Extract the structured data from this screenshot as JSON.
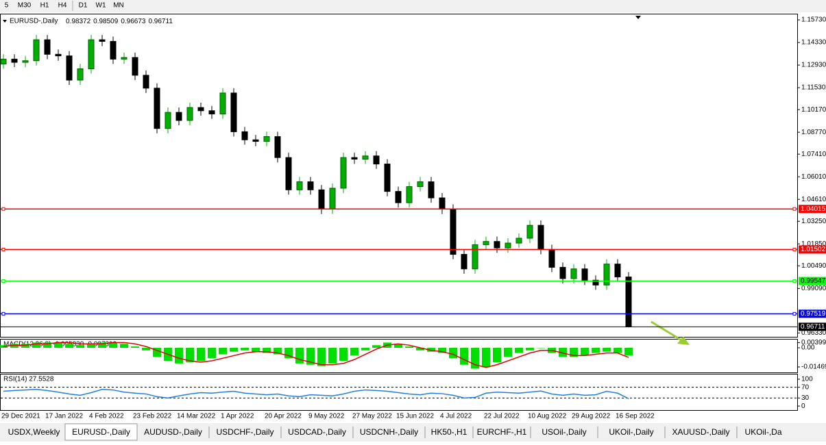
{
  "timeframes": [
    "5",
    "M30",
    "H1",
    "H4",
    "D1",
    "W1",
    "MN"
  ],
  "tabs": [
    "USDX,Weekly",
    "EURUSD-,Daily",
    "AUDUSD-,Daily",
    "USDCHF-,Daily",
    "USDCAD-,Daily",
    "USDCNH-,Daily",
    "HK50-,H1",
    "EURCHF-,H1",
    "USOil-,Daily",
    "UKOil-,Daily",
    "XAUUSD-,Daily",
    "UKOil-,Da"
  ],
  "chart_data": [
    {
      "type": "candlestick",
      "title": "EURUSD-,Daily",
      "ohlc_header": [
        0.98372,
        0.98509,
        0.96673,
        0.96711
      ],
      "categories": [
        "29 Dec 2021",
        null,
        null,
        null,
        "17 Jan 2022",
        null,
        null,
        null,
        "4 Feb 2022",
        null,
        null,
        null,
        "23 Feb 2022",
        null,
        null,
        null,
        "14 Mar 2022",
        null,
        null,
        null,
        "1 Apr 2022",
        null,
        null,
        null,
        "20 Apr 2022",
        null,
        null,
        null,
        "9 May 2022",
        null,
        null,
        null,
        "27 May 2022",
        null,
        null,
        null,
        "15 Jun 2022",
        null,
        null,
        null,
        "4 Jul 2022",
        null,
        null,
        null,
        "22 Jul 2022",
        null,
        null,
        null,
        "10 Aug 2022",
        null,
        null,
        null,
        "29 Aug 2022",
        null,
        null,
        null,
        "16 Sep 2022",
        null
      ],
      "open": [
        1.13,
        1.133,
        1.131,
        1.132,
        1.145,
        1.136,
        1.135,
        1.12,
        1.127,
        1.145,
        1.144,
        1.133,
        1.134,
        1.123,
        1.115,
        1.09,
        1.1,
        1.095,
        1.103,
        1.101,
        1.099,
        1.112,
        1.088,
        1.083,
        1.082,
        1.085,
        1.072,
        1.052,
        1.057,
        1.052,
        1.04,
        1.053,
        1.072,
        1.071,
        1.073,
        1.068,
        1.051,
        1.044,
        1.054,
        1.057,
        1.047,
        1.04,
        1.012,
        1.003,
        1.018,
        1.02,
        1.016,
        1.019,
        1.022,
        1.03,
        1.015,
        1.004,
        0.997,
        1.003,
        0.996,
        0.993,
        1.006,
        0.998
      ],
      "high": [
        1.136,
        1.136,
        1.135,
        1.148,
        1.148,
        1.139,
        1.138,
        1.13,
        1.148,
        1.148,
        1.147,
        1.137,
        1.137,
        1.126,
        1.118,
        1.103,
        1.103,
        1.106,
        1.106,
        1.104,
        1.115,
        1.115,
        1.091,
        1.086,
        1.088,
        1.088,
        1.075,
        1.06,
        1.06,
        1.055,
        1.056,
        1.075,
        1.075,
        1.076,
        1.076,
        1.071,
        1.054,
        1.057,
        1.06,
        1.06,
        1.05,
        1.043,
        1.015,
        1.021,
        1.023,
        1.023,
        1.022,
        1.025,
        1.033,
        1.033,
        1.018,
        1.007,
        1.006,
        1.006,
        0.999,
        1.009,
        1.009,
        1.001
      ],
      "low": [
        1.127,
        1.128,
        1.128,
        1.129,
        1.133,
        1.132,
        1.117,
        1.117,
        1.124,
        1.141,
        1.13,
        1.13,
        1.12,
        1.112,
        1.087,
        1.087,
        1.092,
        1.092,
        1.098,
        1.096,
        1.096,
        1.085,
        1.08,
        1.079,
        1.079,
        1.069,
        1.049,
        1.049,
        1.049,
        1.037,
        1.037,
        1.05,
        1.068,
        1.068,
        1.065,
        1.048,
        1.041,
        1.041,
        1.051,
        1.044,
        1.037,
        1.009,
        1.0,
        1.0,
        1.015,
        1.013,
        1.013,
        1.016,
        1.019,
        1.012,
        1.001,
        0.994,
        0.994,
        0.993,
        0.99,
        0.99,
        0.995,
        0.96673
      ],
      "close": [
        1.133,
        1.131,
        1.132,
        1.145,
        1.136,
        1.135,
        1.12,
        1.127,
        1.145,
        1.144,
        1.133,
        1.134,
        1.123,
        1.115,
        1.09,
        1.1,
        1.095,
        1.103,
        1.101,
        1.099,
        1.112,
        1.088,
        1.083,
        1.082,
        1.085,
        1.072,
        1.052,
        1.057,
        1.052,
        1.04,
        1.053,
        1.072,
        1.071,
        1.073,
        1.068,
        1.051,
        1.044,
        1.054,
        1.057,
        1.047,
        1.04,
        1.012,
        1.003,
        1.018,
        1.02,
        1.016,
        1.019,
        1.022,
        1.03,
        1.015,
        1.004,
        0.997,
        1.003,
        0.996,
        0.993,
        1.006,
        0.998,
        0.96711
      ],
      "up_color": "#00b000",
      "down_color": "#000000",
      "levels": [
        {
          "value": 1.04015,
          "color": "#ff0000"
        },
        {
          "value": 1.01502,
          "color": "#ff0000"
        },
        {
          "value": 0.99547,
          "color": "#00ff00"
        },
        {
          "value": 0.97519,
          "color": "#0000ff"
        },
        {
          "value": 0.96711,
          "color": "#000000"
        }
      ],
      "ylim": [
        0.9609,
        1.1603
      ],
      "yticks": [
        {
          "value": 1.1573,
          "label": "1.15730"
        },
        {
          "value": 1.1433,
          "label": "1.14330"
        },
        {
          "value": 1.1293,
          "label": "1.12930"
        },
        {
          "value": 1.1153,
          "label": "1.11530"
        },
        {
          "value": 1.1017,
          "label": "1.10170"
        },
        {
          "value": 1.0877,
          "label": "1.08770"
        },
        {
          "value": 1.0741,
          "label": "1.07410"
        },
        {
          "value": 1.0601,
          "label": "1.06010"
        },
        {
          "value": 1.0461,
          "label": "1.04610"
        },
        {
          "value": 1.0325,
          "label": "1.03250"
        },
        {
          "value": 1.0185,
          "label": "1.01850"
        },
        {
          "value": 1.0049,
          "label": "1.00490"
        },
        {
          "value": 0.9909,
          "label": "0.99090"
        },
        {
          "value": 0.9633,
          "label": "0.96330"
        }
      ]
    },
    {
      "type": "combo",
      "title": "MACD(12,26,9) -0.005830 -0.007392",
      "series": [
        {
          "kind": "bar",
          "color": "#00e000",
          "values": [
            0.002,
            0.003,
            0.003,
            0.004,
            0.004,
            0.004,
            0.003,
            0.002,
            0.003,
            0.004,
            0.004,
            0.003,
            0.001,
            -0.002,
            -0.007,
            -0.01,
            -0.012,
            -0.011,
            -0.01,
            -0.008,
            -0.005,
            -0.003,
            -0.002,
            -0.003,
            -0.004,
            -0.005,
            -0.008,
            -0.012,
            -0.013,
            -0.014,
            -0.012,
            -0.01,
            -0.006,
            -0.002,
            0.002,
            0.004,
            0.003,
            0.001,
            -0.002,
            -0.003,
            -0.004,
            -0.008,
            -0.013,
            -0.016,
            -0.015,
            -0.011,
            -0.007,
            -0.004,
            -0.002,
            0.0,
            -0.004,
            -0.007,
            -0.007,
            -0.006,
            -0.004,
            -0.003,
            -0.004,
            -0.00583
          ]
        },
        {
          "kind": "line",
          "color": "#e00000",
          "values": [
            0.001,
            0.002,
            0.002,
            0.003,
            0.003,
            0.004,
            0.004,
            0.003,
            0.003,
            0.003,
            0.004,
            0.004,
            0.003,
            0.001,
            -0.002,
            -0.005,
            -0.008,
            -0.01,
            -0.011,
            -0.01,
            -0.008,
            -0.006,
            -0.004,
            -0.003,
            -0.003,
            -0.004,
            -0.006,
            -0.009,
            -0.011,
            -0.013,
            -0.013,
            -0.012,
            -0.009,
            -0.005,
            -0.001,
            0.002,
            0.003,
            0.002,
            0.0,
            -0.002,
            -0.003,
            -0.005,
            -0.009,
            -0.013,
            -0.015,
            -0.013,
            -0.01,
            -0.007,
            -0.004,
            -0.002,
            -0.002,
            -0.004,
            -0.006,
            -0.006,
            -0.005,
            -0.004,
            -0.004,
            -0.007392
          ]
        }
      ],
      "ylim": [
        -0.0189,
        0.0063
      ],
      "yticks": [
        0.00399,
        {
          "value": 0,
          "label": "0.00"
        },
        -0.01469
      ]
    },
    {
      "type": "line",
      "title": "RSI(14) 27.5528",
      "color": "#1e7fe0",
      "values": [
        55,
        58,
        60,
        62,
        58,
        52,
        45,
        40,
        50,
        62,
        60,
        52,
        48,
        45,
        35,
        30,
        38,
        45,
        50,
        48,
        52,
        55,
        48,
        45,
        42,
        45,
        38,
        35,
        42,
        40,
        38,
        45,
        55,
        60,
        58,
        55,
        50,
        45,
        42,
        48,
        46,
        40,
        30,
        32,
        48,
        52,
        50,
        48,
        52,
        56,
        45,
        40,
        45,
        40,
        42,
        55,
        48,
        27.5528
      ],
      "levels": [
        70,
        30
      ],
      "ylim": [
        -15,
        117.5
      ],
      "yticks": [
        100,
        70,
        30,
        0
      ]
    }
  ]
}
